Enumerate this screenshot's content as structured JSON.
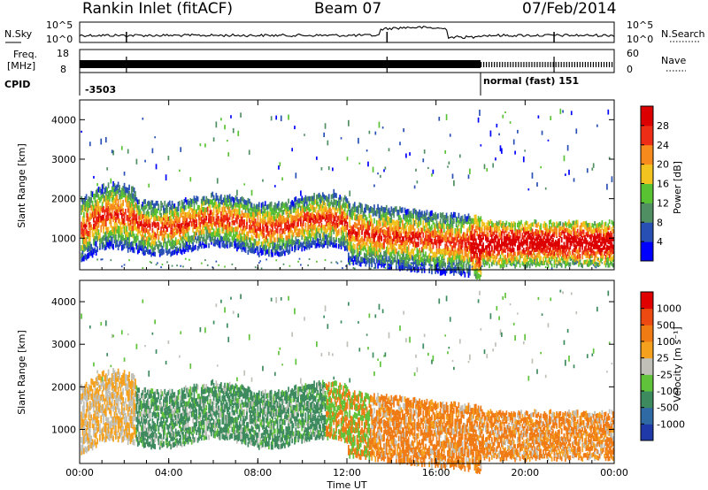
{
  "header": {
    "station": "Rankin Inlet (fitACF)",
    "beam": "Beam 07",
    "date": "07/Feb/2014"
  },
  "strips": {
    "nsky_label": "N.Sky",
    "nsky_ticks": [
      "10^5",
      "10^0"
    ],
    "nsearch_label": "N.Search",
    "nsearch_ticks": [
      "10^5",
      "10^0"
    ],
    "freq_label": "Freq.",
    "freq_unit": "[MHz]",
    "freq_ticks": [
      "18",
      "8"
    ],
    "nave_label": "Nave",
    "nave_ticks": [
      "60",
      "0"
    ],
    "cpid_label": "CPID",
    "cpid_segments": [
      {
        "text": "-3503",
        "start_hour": 0
      },
      {
        "text": "normal (fast) 151",
        "start_hour": 18
      }
    ]
  },
  "time_axis": {
    "label": "Time UT",
    "ticks": [
      "00:00",
      "04:00",
      "08:00",
      "12:00",
      "16:00",
      "20:00",
      "00:00"
    ]
  },
  "chart_data": [
    {
      "type": "heatmap",
      "panel": "power",
      "ylabel": "Slant Range [km]",
      "xlim_hours": [
        0,
        24
      ],
      "ylim": [
        200,
        4500
      ],
      "yticks": [
        1000,
        2000,
        3000,
        4000
      ],
      "colorbar": {
        "label": "Power [dB]",
        "ticks": [
          "28",
          "24",
          "20",
          "16",
          "12",
          "8",
          "4"
        ],
        "colors": [
          "#0000ff",
          "#2850b4",
          "#4f8f62",
          "#59c232",
          "#f2c21e",
          "#f68a1c",
          "#ee2d16",
          "#dd0000"
        ]
      }
    },
    {
      "type": "heatmap",
      "panel": "velocity",
      "ylabel": "Slant Range [km]",
      "xlim_hours": [
        0,
        24
      ],
      "ylim": [
        200,
        4500
      ],
      "yticks": [
        1000,
        2000,
        3000,
        4000
      ],
      "colorbar": {
        "label": "Velocity [m s⁻¹]",
        "ticks": [
          "1000",
          "500",
          "100",
          "25",
          "-25",
          "-100",
          "-500",
          "-1000"
        ],
        "colors": [
          "#1f3aa8",
          "#2f6aa4",
          "#3d8a5e",
          "#5fc23a",
          "#c0c0b8",
          "#f5a11e",
          "#f07a14",
          "#ec4a10",
          "#e00000"
        ]
      }
    }
  ]
}
